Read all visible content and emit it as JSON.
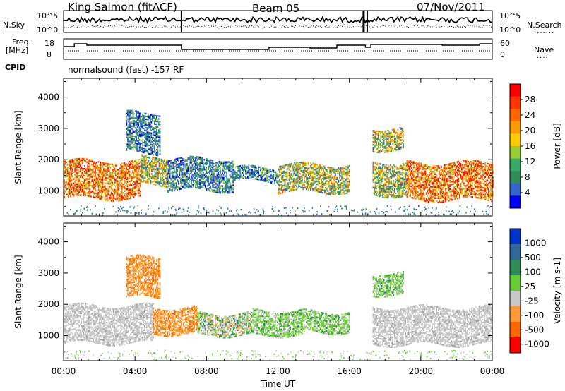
{
  "header": {
    "station": "King Salmon (fitACF)",
    "beam": "Beam 05",
    "date": "07/Nov/2011"
  },
  "noise_panel": {
    "left_label": "N.Sky",
    "right_label": "N.Search",
    "left_ticks": [
      "10^5",
      "10^0"
    ],
    "right_ticks": [
      "10^5",
      "10^0"
    ]
  },
  "freq_panel": {
    "left_label_line1": "Freq.",
    "left_label_line2": "[MHz]",
    "right_label": "Nave",
    "left_ticks": [
      "18",
      "8"
    ],
    "right_ticks": [
      "60",
      "0"
    ]
  },
  "cpid": {
    "label": "CPID",
    "mode": "normalsound (fast) -157 RF"
  },
  "chart_data": [
    {
      "type": "heatmap",
      "parameter": "power",
      "ylabel": "Slant Range [km]",
      "xlabel": "Time UT",
      "yticks": [
        "1000",
        "2000",
        "3000",
        "4000"
      ],
      "ylim": [
        200,
        4600
      ],
      "xticks": [
        "00:00",
        "04:00",
        "08:00",
        "12:00",
        "16:00",
        "20:00",
        "00:00"
      ],
      "xlim_hours": [
        0,
        24
      ],
      "colorbar_label": "Power [dB]",
      "colorbar_ticks": [
        "28",
        "24",
        "20",
        "16",
        "12",
        "8",
        "4"
      ],
      "colorbar_colors": [
        "#ff0000",
        "#ff3300",
        "#ff6600",
        "#ff9900",
        "#ffcc00",
        "#99cc33",
        "#33aa66",
        "#2e8b57",
        "#3366cc",
        "#0000ff"
      ],
      "backscatter_regions": [
        {
          "t0": 0.0,
          "t1": 4.3,
          "r0": 750,
          "r1": 1950,
          "level": "high"
        },
        {
          "t0": 4.3,
          "t1": 5.8,
          "r0": 1200,
          "r1": 2100,
          "level": "mid"
        },
        {
          "t0": 5.8,
          "t1": 9.5,
          "r0": 1000,
          "r1": 2000,
          "level": "low"
        },
        {
          "t0": 9.5,
          "t1": 12.0,
          "r0": 1300,
          "r1": 1750,
          "level": "low"
        },
        {
          "t0": 12.0,
          "t1": 16.0,
          "r0": 950,
          "r1": 1850,
          "level": "mid"
        },
        {
          "t0": 17.3,
          "t1": 19.2,
          "r0": 850,
          "r1": 1900,
          "level": "mid"
        },
        {
          "t0": 17.3,
          "t1": 19.0,
          "r0": 2300,
          "r1": 3000,
          "level": "mid"
        },
        {
          "t0": 19.2,
          "t1": 24.0,
          "r0": 700,
          "r1": 1900,
          "level": "high"
        },
        {
          "t0": 3.5,
          "t1": 5.4,
          "r0": 2200,
          "r1": 3500,
          "level": "low"
        }
      ]
    },
    {
      "type": "heatmap",
      "parameter": "velocity",
      "ylabel": "Slant Range [km]",
      "xlabel": "Time UT",
      "yticks": [
        "1000",
        "2000",
        "3000",
        "4000"
      ],
      "ylim": [
        200,
        4600
      ],
      "xticks": [
        "00:00",
        "04:00",
        "08:00",
        "12:00",
        "16:00",
        "20:00",
        "00:00"
      ],
      "xlim_hours": [
        0,
        24
      ],
      "colorbar_label": "Velocity [m s-1]",
      "colorbar_ticks": [
        "1000",
        "500",
        "100",
        "25",
        "-25",
        "-100",
        "-500",
        "-1000"
      ],
      "colorbar_colors": [
        "#0033cc",
        "#336699",
        "#2e8b57",
        "#66cc33",
        "#c8c8c8",
        "#ff9933",
        "#ff6600",
        "#ff0000"
      ],
      "backscatter_regions": [
        {
          "t0": 0.0,
          "t1": 5.0,
          "r0": 750,
          "r1": 1950,
          "level": "ground"
        },
        {
          "t0": 5.0,
          "t1": 7.5,
          "r0": 1050,
          "r1": 1900,
          "level": "neg"
        },
        {
          "t0": 7.5,
          "t1": 10.5,
          "r0": 1000,
          "r1": 1700,
          "level": "mixed"
        },
        {
          "t0": 10.5,
          "t1": 13.5,
          "r0": 1000,
          "r1": 1800,
          "level": "pos"
        },
        {
          "t0": 13.5,
          "t1": 16.0,
          "r0": 1100,
          "r1": 1750,
          "level": "pos"
        },
        {
          "t0": 17.3,
          "t1": 24.0,
          "r0": 700,
          "r1": 1900,
          "level": "ground"
        },
        {
          "t0": 17.3,
          "t1": 19.0,
          "r0": 2300,
          "r1": 3000,
          "level": "pos"
        },
        {
          "t0": 3.5,
          "t1": 5.4,
          "r0": 2200,
          "r1": 3500,
          "level": "neg"
        }
      ]
    }
  ]
}
